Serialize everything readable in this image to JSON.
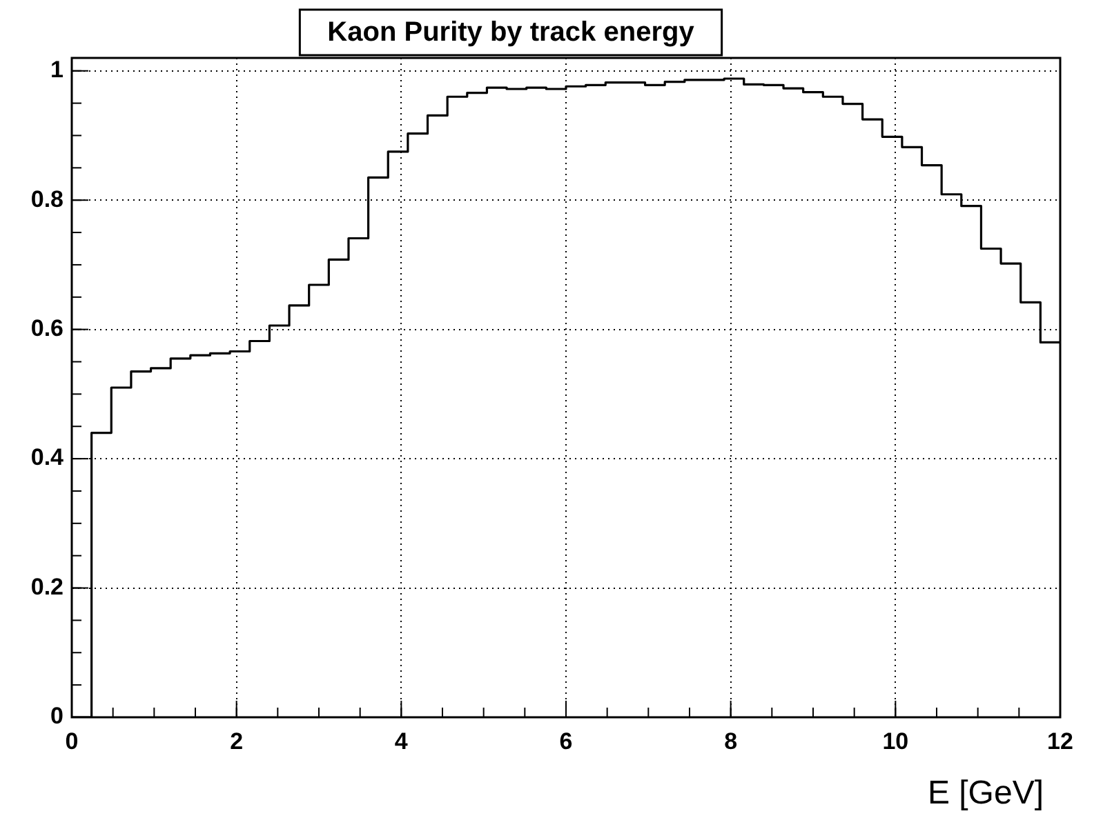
{
  "chart_data": {
    "type": "histogram",
    "title": "Kaon Purity by track energy",
    "xlabel": "E [GeV]",
    "bins": [
      0,
      0.24,
      0.48,
      0.72,
      0.96,
      1.2,
      1.44,
      1.68,
      1.92,
      2.16,
      2.4,
      2.64,
      2.88,
      3.12,
      3.36,
      3.6,
      3.84,
      4.08,
      4.32,
      4.56,
      4.8,
      5.04,
      5.28,
      5.52,
      5.76,
      6,
      6.24,
      6.48,
      6.72,
      6.96,
      7.2,
      7.44,
      7.68,
      7.92,
      8.16,
      8.4,
      8.64,
      8.88,
      9.12,
      9.36,
      9.6,
      9.84,
      10.08,
      10.32,
      10.56,
      10.8,
      11.04,
      11.28,
      11.52,
      11.76,
      12
    ],
    "values": [
      0,
      0.44,
      0.51,
      0.535,
      0.54,
      0.555,
      0.56,
      0.563,
      0.566,
      0.582,
      0.606,
      0.637,
      0.669,
      0.708,
      0.741,
      0.835,
      0.875,
      0.903,
      0.931,
      0.96,
      0.966,
      0.974,
      0.972,
      0.974,
      0.972,
      0.976,
      0.978,
      0.982,
      0.982,
      0.978,
      0.983,
      0.986,
      0.986,
      0.988,
      0.979,
      0.978,
      0.973,
      0.967,
      0.96,
      0.949,
      0.925,
      0.898,
      0.882,
      0.854,
      0.809,
      0.791,
      0.725,
      0.702,
      0.642,
      0.58
    ],
    "color": "#000000",
    "xlim": [
      0,
      12
    ],
    "xticks": [
      0,
      2,
      4,
      6,
      8,
      10,
      12
    ],
    "ylim": [
      0,
      1.02
    ],
    "yticks": [
      0,
      0.2,
      0.4,
      0.6,
      0.8,
      1
    ],
    "grid": true,
    "legend": false
  }
}
